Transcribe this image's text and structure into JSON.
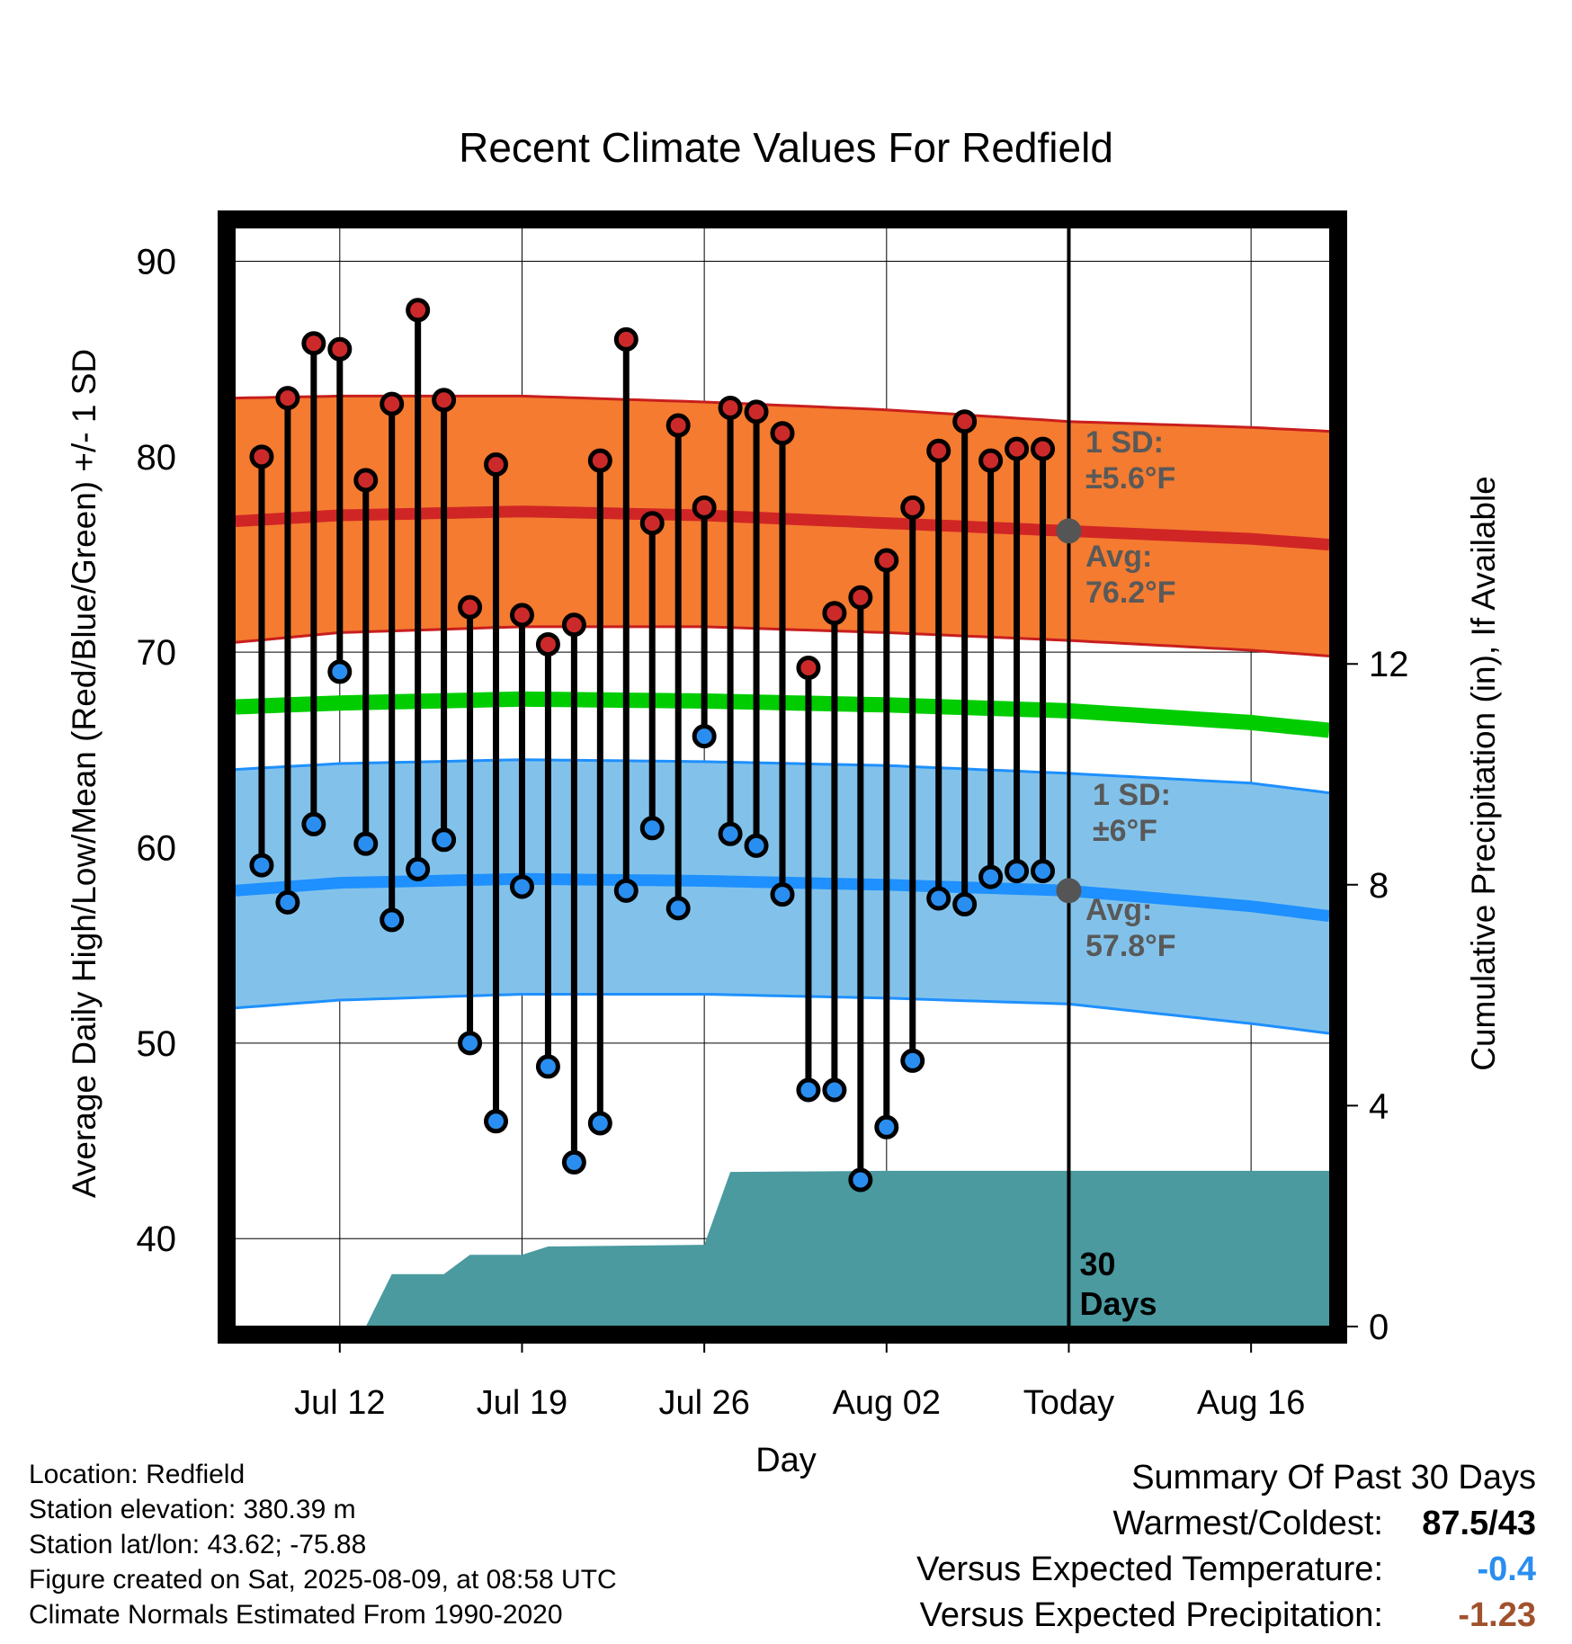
{
  "chart_data": {
    "type": "line",
    "title": "Recent Climate Values For Redfield",
    "xlabel": "Day",
    "ylabel": "Average Daily High/Low/Mean (Red/Blue/Green) +/- 1 SD",
    "y2label": "Cumulative Precipitation (in), If Available",
    "ylim": [
      35.5,
      92
    ],
    "y2lim": [
      0,
      20
    ],
    "yticks": [
      40,
      50,
      60,
      70,
      80,
      90
    ],
    "y2ticks": [
      0,
      4,
      8,
      12
    ],
    "xlim": [
      "2025-07-08",
      "2025-08-19"
    ],
    "xticks": [
      {
        "date": "2025-07-12",
        "label": "Jul 12"
      },
      {
        "date": "2025-07-19",
        "label": "Jul 19"
      },
      {
        "date": "2025-07-26",
        "label": "Jul 26"
      },
      {
        "date": "2025-08-02",
        "label": "Aug 02"
      },
      {
        "date": "2025-08-09",
        "label": "Today"
      },
      {
        "date": "2025-08-16",
        "label": "Aug 16"
      }
    ],
    "grid": true,
    "today": "2025-08-09",
    "window_label": [
      "30",
      "Days"
    ],
    "normals": {
      "x": [
        "2025-07-08",
        "2025-07-12",
        "2025-07-19",
        "2025-07-26",
        "2025-08-02",
        "2025-08-09",
        "2025-08-16",
        "2025-08-19"
      ],
      "high_avg": [
        76.7,
        77.0,
        77.2,
        77.0,
        76.6,
        76.2,
        75.8,
        75.5
      ],
      "high_upper": [
        83.0,
        83.1,
        83.1,
        82.8,
        82.4,
        81.8,
        81.5,
        81.3
      ],
      "high_lower": [
        70.5,
        71.0,
        71.3,
        71.3,
        71.0,
        70.6,
        70.1,
        69.8
      ],
      "mean": [
        67.2,
        67.4,
        67.6,
        67.5,
        67.3,
        67.0,
        66.4,
        66.0
      ],
      "low_avg": [
        57.8,
        58.2,
        58.4,
        58.3,
        58.1,
        57.8,
        57.0,
        56.5
      ],
      "low_upper": [
        64.0,
        64.3,
        64.5,
        64.4,
        64.2,
        63.8,
        63.3,
        62.8
      ],
      "low_lower": [
        51.8,
        52.2,
        52.5,
        52.5,
        52.3,
        52.0,
        51.0,
        50.5
      ]
    },
    "series": [
      {
        "type": "range",
        "x": [
          "2025-07-09",
          "2025-07-10",
          "2025-07-11",
          "2025-07-12",
          "2025-07-13",
          "2025-07-14",
          "2025-07-15",
          "2025-07-16",
          "2025-07-17",
          "2025-07-18",
          "2025-07-19",
          "2025-07-20",
          "2025-07-21",
          "2025-07-22",
          "2025-07-23",
          "2025-07-24",
          "2025-07-25",
          "2025-07-26",
          "2025-07-27",
          "2025-07-28",
          "2025-07-29",
          "2025-07-30",
          "2025-07-31",
          "2025-08-01",
          "2025-08-02",
          "2025-08-03",
          "2025-08-04",
          "2025-08-05",
          "2025-08-06",
          "2025-08-07",
          "2025-08-08"
        ],
        "high": [
          80.0,
          83.0,
          85.8,
          85.5,
          78.8,
          82.7,
          87.5,
          82.9,
          72.3,
          79.6,
          71.9,
          70.4,
          71.4,
          79.8,
          86.0,
          76.6,
          81.6,
          77.4,
          82.5,
          82.3,
          81.2,
          69.2,
          72.0,
          72.8,
          74.7,
          77.4,
          80.3,
          81.8,
          79.8,
          80.4,
          80.4
        ],
        "low": [
          59.1,
          57.2,
          61.2,
          69.0,
          60.2,
          56.3,
          58.9,
          60.4,
          50.0,
          46.0,
          58.0,
          48.8,
          43.9,
          45.9,
          57.8,
          61.0,
          56.9,
          65.7,
          60.7,
          60.1,
          57.6,
          47.6,
          47.6,
          43.0,
          45.7,
          49.1,
          57.4,
          57.1,
          58.5,
          58.8,
          58.8
        ]
      }
    ],
    "precipitation": {
      "x": [
        "2025-07-08",
        "2025-07-13",
        "2025-07-14",
        "2025-07-16",
        "2025-07-17",
        "2025-07-19",
        "2025-07-20",
        "2025-07-26",
        "2025-07-27",
        "2025-08-02",
        "2025-08-19"
      ],
      "cumulative": [
        0,
        0,
        0.95,
        0.95,
        1.3,
        1.3,
        1.45,
        1.48,
        2.8,
        2.82,
        2.82
      ]
    },
    "annotations": {
      "high_sd": [
        "1 SD:",
        "±5.6°F"
      ],
      "high_avg": [
        "Avg:",
        "76.2°F"
      ],
      "low_sd": [
        "1 SD:",
        "±6°F"
      ],
      "low_avg": [
        "Avg:",
        "57.8°F"
      ]
    },
    "colors": {
      "high_band": "#f47b30",
      "high_line": "#d02525",
      "high_edge": "#c81e1e",
      "low_band": "#82c2ea",
      "low_line": "#1e90ff",
      "mean_line": "#00cc00",
      "precip": "#4a9aa0",
      "high_marker": "#cc2a2a",
      "low_marker": "#2a8ef0",
      "annotation": "#595959",
      "today_marker": "#555555"
    }
  },
  "info": {
    "location": "Location: Redfield",
    "elevation": "Station elevation: 380.39 m",
    "latlon": "Station lat/lon: 43.62; -75.88",
    "created": "Figure created on Sat, 2025-08-09, at 08:58 UTC",
    "normals": "Climate Normals Estimated From 1990-2020"
  },
  "summary": {
    "title": "Summary Of Past 30 Days",
    "warmest_label": "Warmest/Coldest:",
    "warmest_value": "87.5/43",
    "temp_label": "Versus Expected Temperature:",
    "temp_value": "-0.4",
    "temp_color": "#2a8ef0",
    "precip_label": "Versus Expected Precipitation:",
    "precip_value": "-1.23",
    "precip_color": "#a0522d"
  }
}
